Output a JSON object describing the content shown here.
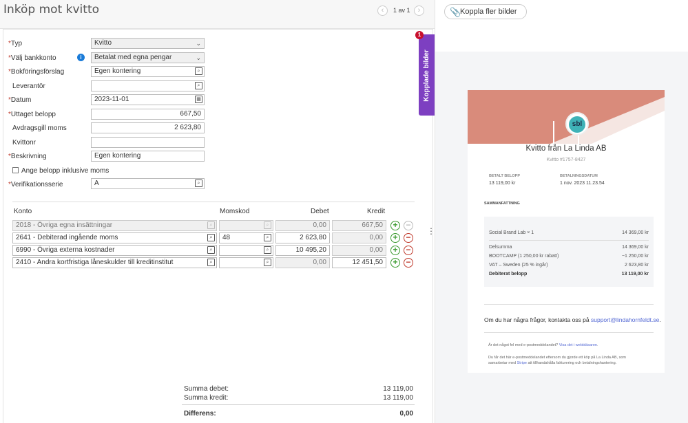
{
  "header": {
    "title": "Inköp mot kvitto",
    "pager": "1 av 1",
    "prev_icon": "chevron-left-icon",
    "next_icon": "chevron-right-icon"
  },
  "form": {
    "typ": {
      "label": "Typ",
      "value": "Kvitto"
    },
    "bankkonto": {
      "label": "Välj bankkonto",
      "value": "Betalat med egna pengar"
    },
    "bokforing": {
      "label": "Bokföringsförslag",
      "value": "Egen kontering"
    },
    "leverantor": {
      "label": "Leverantör",
      "value": ""
    },
    "datum": {
      "label": "Datum",
      "value": "2023-11-01"
    },
    "uttaget": {
      "label": "Uttaget belopp",
      "value": "667,50"
    },
    "avdrag": {
      "label": "Avdragsgill moms",
      "value": "2 623,80"
    },
    "kvittonr": {
      "label": "Kvittonr",
      "value": ""
    },
    "beskrivning": {
      "label": "Beskrivning",
      "value": "Egen kontering"
    },
    "inkl_moms": {
      "label": "Ange belopp inklusive moms",
      "checked": false
    },
    "verserie": {
      "label": "Verifikationsserie",
      "value": "A"
    }
  },
  "table": {
    "headers": {
      "konto": "Konto",
      "momskod": "Momskod",
      "debet": "Debet",
      "kredit": "Kredit"
    },
    "rows": [
      {
        "konto": "2018 - Övriga egna insättningar",
        "momskod": "",
        "debet": "0,00",
        "kredit": "667,50",
        "disabled": true
      },
      {
        "konto": "2641 - Debiterad ingående moms",
        "momskod": "48",
        "debet": "2 623,80",
        "kredit": "0,00",
        "disabled": false
      },
      {
        "konto": "6990 - Övriga externa kostnader",
        "momskod": "",
        "debet": "10 495,20",
        "kredit": "0,00",
        "disabled": false
      },
      {
        "konto": "2410 - Andra kortfristiga låneskulder till kreditinstitut",
        "momskod": "",
        "debet": "0,00",
        "kredit": "12 451,50",
        "disabled": false
      }
    ]
  },
  "summary": {
    "debet_label": "Summa debet:",
    "debet_value": "13 119,00",
    "kredit_label": "Summa kredit:",
    "kredit_value": "13 119,00",
    "diff_label": "Differens:",
    "diff_value": "0,00"
  },
  "sidetab": {
    "label": "Kopplade bilder",
    "badge": "1"
  },
  "attach_button": "Koppla fler bilder",
  "receipt": {
    "logo": "sbl",
    "title": "Kvitto från La Linda AB",
    "number": "Kvitto #1757-8427",
    "paid_label": "BETALT BELOPP",
    "paid_value": "13 119,00 kr",
    "date_label": "BETALNINGSDATUM",
    "date_value": "1 nov. 2023 11.23.54",
    "summary_label": "SAMMANFATTNING",
    "item_name": "Social Brand Lab × 1",
    "item_value": "14 369,00 kr",
    "subtotal_label": "Delsumma",
    "subtotal_value": "14 369,00 kr",
    "discount_label": "BOOTCAMP (1 250,00 kr rabatt)",
    "discount_value": "−1 250,00 kr",
    "vat_label": "VAT – Sweden (25 % ingår)",
    "vat_value": "2 623,80 kr",
    "charged_label": "Debiterat belopp",
    "charged_value": "13 119,00 kr",
    "contact_text": "Om du har några frågor, kontakta oss på ",
    "contact_email": "support@lindahornfeldt.se",
    "contact_end": ".",
    "footer1_text": "Är det något fel med e-postmeddelandet? ",
    "footer1_link": "Visa det i webbläsaren",
    "footer1_end": ".",
    "footer2_text": "Du får det här e-postmeddelandet eftersom du gjorde ett köp på La Linda AB, som samarbetar med ",
    "footer2_link": "Stripe",
    "footer2_end": " att tillhandahålla fakturering och betalningshantering."
  },
  "colors": {
    "accent": "#7d3fc1",
    "receipt_header": "#d98b7b",
    "add": "#3a9a2e",
    "remove": "#c0392b"
  }
}
